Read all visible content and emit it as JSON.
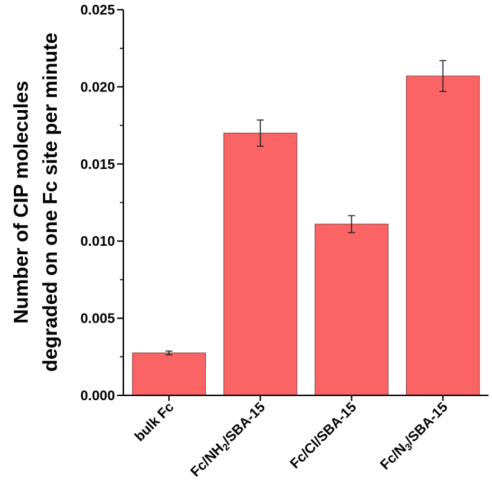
{
  "chart_data": {
    "type": "bar",
    "title": "",
    "xlabel": "",
    "ylabel_lines": [
      "Number of CIP molecules",
      "degraded on one Fc site per minute"
    ],
    "categories": [
      {
        "parts": [
          {
            "t": "bulk Fc"
          }
        ]
      },
      {
        "parts": [
          {
            "t": "Fc/NH"
          },
          {
            "t": "2",
            "sub": true
          },
          {
            "t": "/SBA-15"
          }
        ]
      },
      {
        "parts": [
          {
            "t": "Fc/Cl/SBA-15"
          }
        ]
      },
      {
        "parts": [
          {
            "t": "Fc/N"
          },
          {
            "t": "3",
            "sub": true
          },
          {
            "t": "/SBA-15"
          }
        ]
      }
    ],
    "values": [
      0.00275,
      0.017,
      0.0111,
      0.0207
    ],
    "errors": [
      0.00012,
      0.00085,
      0.00055,
      0.001
    ],
    "ylim": [
      0,
      0.025
    ],
    "yticks": [
      "0.000",
      "0.005",
      "0.010",
      "0.015",
      "0.020",
      "0.025"
    ],
    "bar_color": "#fb6464",
    "bar_edge": "#8a3a3a",
    "grid": false,
    "legend": "none"
  }
}
